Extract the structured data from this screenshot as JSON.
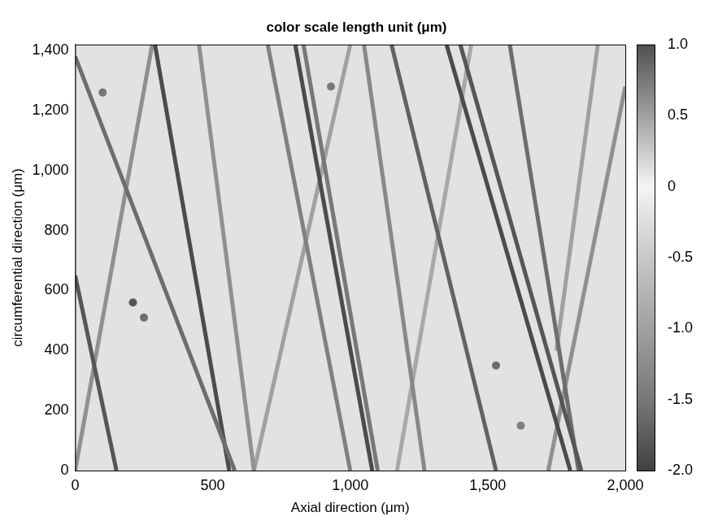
{
  "chart_data": {
    "type": "heatmap",
    "title": "color scale length unit (μm)",
    "x_label": "Axial direction (μm)",
    "y_label": "circumferential direction (μm)",
    "xlim": [
      0,
      2000
    ],
    "xticks": [
      0,
      500,
      1000,
      1500,
      2000
    ],
    "ylim": [
      0,
      1420
    ],
    "yticks": [
      0,
      200,
      400,
      600,
      800,
      1000,
      1200,
      1400
    ],
    "grid": false,
    "background_value": -0.2,
    "colorbar": {
      "range": [
        -2,
        1
      ],
      "ticks": [
        1,
        0.5,
        0,
        -0.5,
        -1,
        -1.5,
        -2
      ]
    },
    "grooves": [
      {
        "x": [
          0,
          580
        ],
        "y": [
          1380,
          0
        ],
        "depth": -1.6
      },
      {
        "x": [
          0,
          150
        ],
        "y": [
          650,
          0
        ],
        "depth": -1.8
      },
      {
        "x": [
          290,
          560
        ],
        "y": [
          1420,
          0
        ],
        "depth": -1.9
      },
      {
        "x": [
          0,
          280
        ],
        "y": [
          0,
          1420
        ],
        "depth": -1.2
      },
      {
        "x": [
          450,
          650
        ],
        "y": [
          1420,
          0
        ],
        "depth": -1.2
      },
      {
        "x": [
          700,
          1000
        ],
        "y": [
          1420,
          0
        ],
        "depth": -1.4
      },
      {
        "x": [
          800,
          1080
        ],
        "y": [
          1420,
          0
        ],
        "depth": -1.9
      },
      {
        "x": [
          830,
          1100
        ],
        "y": [
          1420,
          0
        ],
        "depth": -1.5
      },
      {
        "x": [
          1050,
          1270
        ],
        "y": [
          1420,
          0
        ],
        "depth": -1.3
      },
      {
        "x": [
          1150,
          1530
        ],
        "y": [
          1420,
          0
        ],
        "depth": -1.7
      },
      {
        "x": [
          1350,
          1800
        ],
        "y": [
          1420,
          0
        ],
        "depth": -1.9
      },
      {
        "x": [
          1400,
          1840
        ],
        "y": [
          1420,
          0
        ],
        "depth": -1.8
      },
      {
        "x": [
          1580,
          1830
        ],
        "y": [
          1420,
          0
        ],
        "depth": -1.6
      },
      {
        "x": [
          650,
          1000
        ],
        "y": [
          0,
          1420
        ],
        "depth": -1.0
      },
      {
        "x": [
          1170,
          1440
        ],
        "y": [
          0,
          1420
        ],
        "depth": -0.9
      },
      {
        "x": [
          1720,
          2000
        ],
        "y": [
          0,
          1280
        ],
        "depth": -1.2
      },
      {
        "x": [
          1750,
          1900
        ],
        "y": [
          400,
          1420
        ],
        "depth": -1.0
      }
    ],
    "pits": [
      {
        "x": 210,
        "y": 560,
        "depth": -1.8
      },
      {
        "x": 250,
        "y": 510,
        "depth": -1.6
      },
      {
        "x": 100,
        "y": 1260,
        "depth": -1.5
      },
      {
        "x": 1530,
        "y": 350,
        "depth": -1.6
      },
      {
        "x": 930,
        "y": 1280,
        "depth": -1.5
      },
      {
        "x": 1620,
        "y": 150,
        "depth": -1.4
      }
    ]
  }
}
